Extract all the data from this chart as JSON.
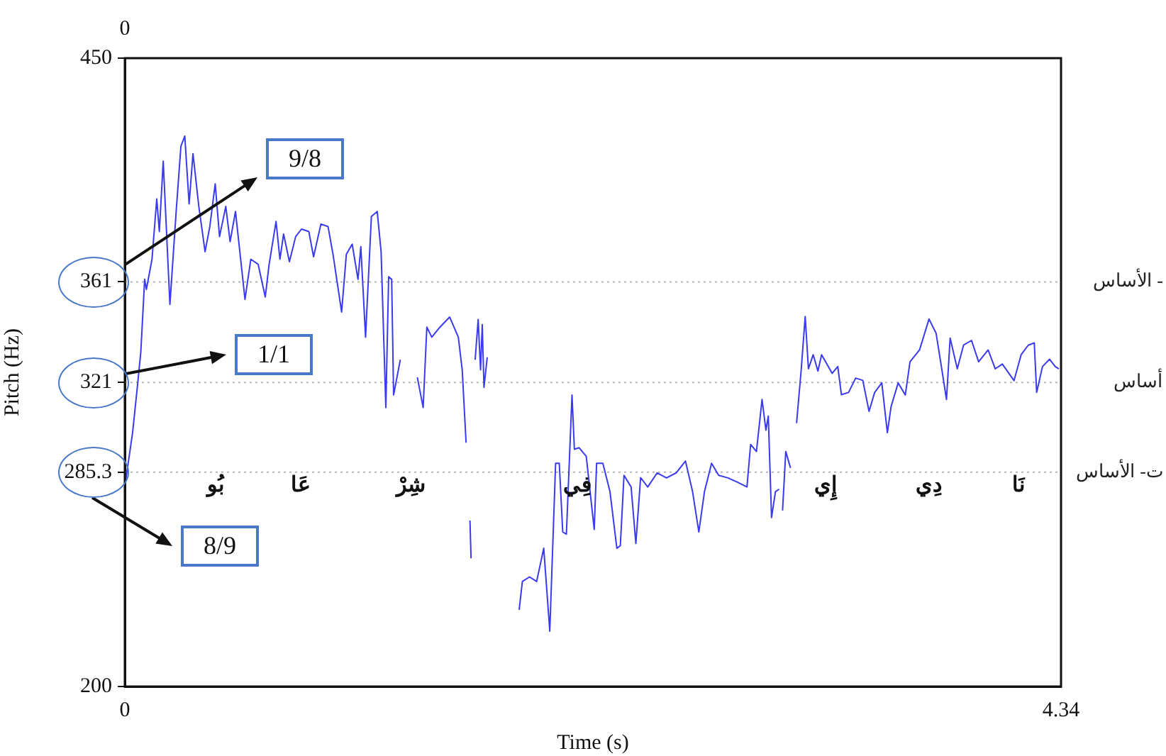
{
  "chart_data": {
    "type": "line",
    "xlabel": "Time (s)",
    "ylabel": "Pitch (Hz)",
    "xlim": [
      0,
      4.34
    ],
    "xticks": [
      0,
      4.34
    ],
    "ylim": [
      200,
      450
    ],
    "yticks": [
      200,
      361,
      321,
      285.3,
      450
    ],
    "grid": false,
    "legend": false,
    "marker": "none",
    "line_style": "solid",
    "ref_lines": [
      {
        "axis": "y",
        "value": 361,
        "label": "- الأساس",
        "color": "#b4b4b4",
        "line_style": "dotted"
      },
      {
        "axis": "y",
        "value": 321,
        "label": "أساس",
        "color": "#b4b4b4",
        "line_style": "dotted"
      },
      {
        "axis": "y",
        "value": 285.3,
        "label": "ت- الأساس",
        "color": "#b4b4b4",
        "line_style": "dotted"
      }
    ],
    "annotations": [
      "9/8",
      "1/1",
      "8/9",
      "0",
      "بُو",
      "عَا",
      "شِرْ",
      "فِي",
      "إِي",
      "دِي",
      "نَا"
    ],
    "series": [
      {
        "color": "#3a3af0",
        "x": [
          0.004,
          0.036,
          0.059,
          0.074,
          0.092,
          0.1,
          0.126,
          0.148,
          0.16,
          0.178,
          0.209,
          0.238,
          0.26,
          0.278,
          0.298,
          0.316,
          0.343,
          0.372,
          0.394,
          0.419,
          0.439,
          0.468,
          0.488,
          0.513,
          0.557,
          0.584,
          0.618,
          0.651,
          0.669,
          0.701,
          0.719,
          0.736,
          0.763,
          0.792,
          0.819,
          0.853,
          0.875,
          0.909,
          0.942,
          0.965,
          1.005,
          1.027,
          1.054,
          1.081,
          1.094,
          1.116,
          1.143,
          1.17,
          1.188,
          1.21,
          1.223,
          1.237,
          1.246,
          1.277,
          1.3,
          1.356,
          1.383,
          1.4,
          1.423,
          1.461,
          1.506,
          1.546,
          1.564,
          1.582,
          1.59,
          1.6,
          1.605,
          1.615,
          1.624,
          1.638,
          1.649,
          1.657,
          1.665,
          1.68,
          1.75,
          1.828,
          1.843,
          1.876,
          1.909,
          1.942,
          1.97,
          1.997,
          2.014,
          2.03,
          2.047,
          2.073,
          2.084,
          2.106,
          2.139,
          2.176,
          2.187,
          2.216,
          2.249,
          2.281,
          2.297,
          2.314,
          2.347,
          2.369,
          2.391,
          2.424,
          2.468,
          2.511,
          2.556,
          2.599,
          2.632,
          2.661,
          2.687,
          2.72,
          2.753,
          2.796,
          2.84,
          2.884,
          2.901,
          2.928,
          2.954,
          2.972,
          2.983,
          2.998,
          3.016,
          3.033,
          3.04,
          3.049,
          3.064,
          3.086,
          3.1,
          3.114,
          3.135,
          3.154,
          3.169,
          3.191,
          3.213,
          3.23,
          3.279,
          3.305,
          3.322,
          3.355,
          3.388,
          3.421,
          3.45,
          3.476,
          3.509,
          3.535,
          3.552,
          3.585,
          3.618,
          3.64,
          3.684,
          3.728,
          3.761,
          3.787,
          3.809,
          3.826,
          3.859,
          3.888,
          3.925,
          3.958,
          4.002,
          4.035,
          4.068,
          4.122,
          4.155,
          4.188,
          4.216,
          4.227,
          4.254,
          4.287,
          4.313,
          4.33
        ],
        "values": [
          282,
          301,
          320,
          333,
          362,
          358,
          370,
          394,
          381,
          409,
          352,
          389,
          415,
          419,
          392,
          412,
          391,
          373,
          383,
          400,
          379,
          391,
          377,
          389,
          354,
          370,
          368,
          355,
          368,
          385,
          370,
          380,
          369,
          379,
          382,
          381,
          371,
          384,
          383,
          372,
          349,
          372,
          376,
          362,
          375,
          339,
          387,
          389,
          373,
          311,
          363,
          362,
          316,
          330,
          null,
          323,
          311,
          343,
          339,
          343,
          347,
          339,
          326,
          297,
          null,
          266,
          251,
          null,
          330,
          346,
          326,
          344,
          319,
          331,
          null,
          230.5,
          241.8,
          243.6,
          241.8,
          255,
          222,
          288.8,
          288.8,
          261.5,
          260.6,
          316,
          294.4,
          295,
          291.6,
          262.5,
          288.8,
          288.8,
          277.5,
          255,
          256,
          284,
          279.4,
          256.9,
          283.1,
          279.4,
          285,
          283,
          285,
          289.7,
          277.5,
          261.5,
          277.5,
          288.8,
          284,
          283,
          281.3,
          279.4,
          296.3,
          293.5,
          314.2,
          302,
          307.6,
          267.2,
          277.5,
          278.5,
          null,
          270,
          293.5,
          287,
          null,
          304.8,
          325.5,
          347.2,
          326.4,
          332,
          325.5,
          332,
          324.6,
          327.3,
          316.1,
          317,
          322.7,
          321.8,
          309.5,
          317,
          320.8,
          301,
          311.3,
          320.8,
          316,
          329.2,
          333.9,
          346.2,
          340.5,
          326.4,
          314.2,
          338.6,
          326.4,
          335.8,
          337.7,
          329.2,
          333.9,
          326.4,
          328.3,
          321.7,
          332,
          335.8,
          336.7,
          317,
          327.3,
          330.2,
          327.3,
          326.4
        ]
      }
    ]
  }
}
